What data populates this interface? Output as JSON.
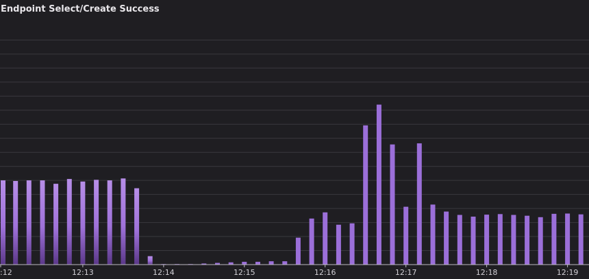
{
  "chart_data": {
    "type": "bar",
    "title": "Endpoint Select/Create Success",
    "xlabel": "",
    "ylabel": "",
    "grid": true,
    "x_tick_labels": [
      ":12",
      "12:13",
      "12:14",
      "12:15",
      "12:16",
      "12:17",
      "12:18",
      "12:19"
    ],
    "x_ticks": [
      0,
      6,
      12,
      18,
      24,
      30,
      36,
      42
    ],
    "x_range": [
      0,
      43.6
    ],
    "ylim": [
      0,
      12
    ],
    "y_grid_step": 0.5,
    "values": [
      3.0,
      2.98,
      3.0,
      3.0,
      2.88,
      3.05,
      2.96,
      3.02,
      3.0,
      3.07,
      2.72,
      0.3,
      0.02,
      0.01,
      0.02,
      0.04,
      0.06,
      0.08,
      0.1,
      0.1,
      0.12,
      0.12,
      0.96,
      1.64,
      1.86,
      1.42,
      1.47,
      4.96,
      5.7,
      4.28,
      2.06,
      4.32,
      2.14,
      1.89,
      1.77,
      1.71,
      1.78,
      1.8,
      1.77,
      1.74,
      1.69,
      1.81,
      1.82,
      1.79
    ],
    "colors": {
      "bar_top": "#b78ee8",
      "bar_mid": "#9f72da",
      "bar_bottom": "#5b3889",
      "bar_flat": "#9b6fd9",
      "grid": "#3a393e",
      "axis": "#bdbbc2"
    }
  }
}
